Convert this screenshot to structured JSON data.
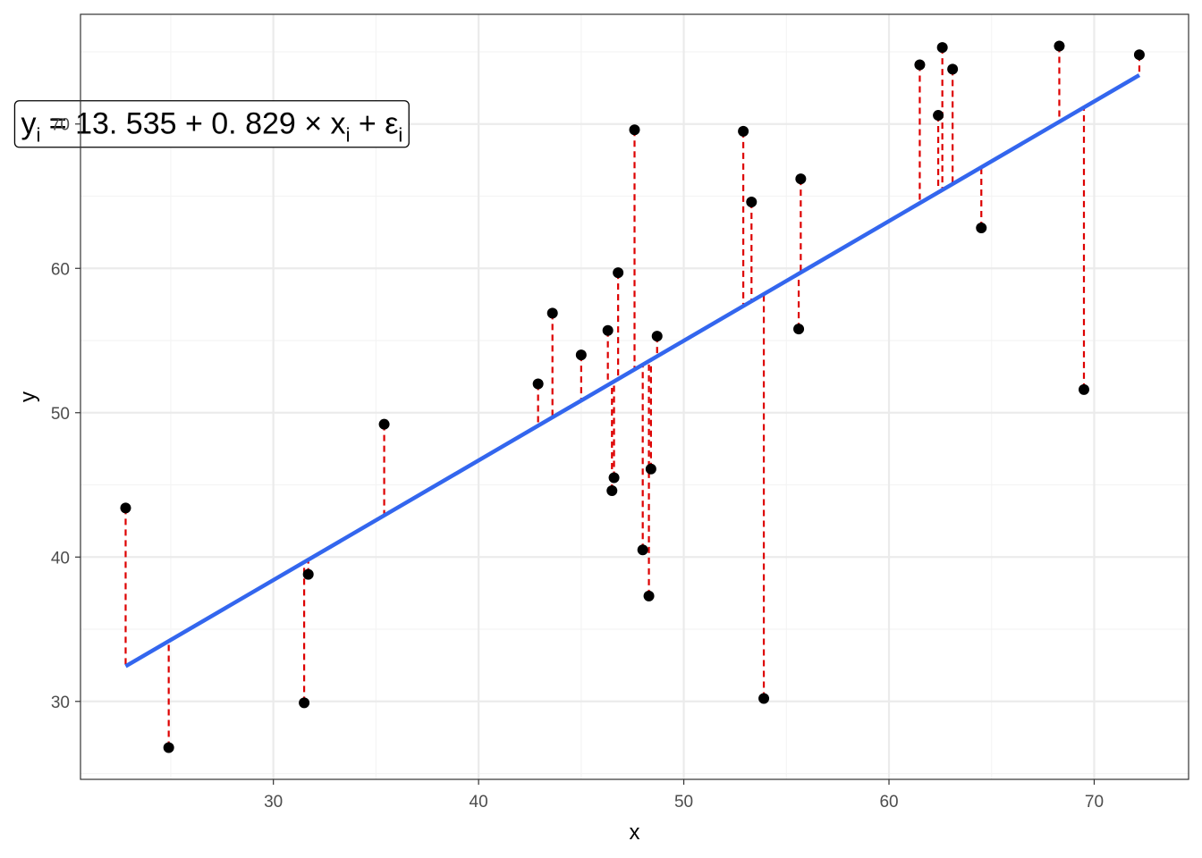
{
  "chart_data": {
    "type": "scatter",
    "xlabel": "x",
    "ylabel": "y",
    "xlim": [
      20.6,
      74.6
    ],
    "ylim": [
      24.6,
      77.6
    ],
    "x_major_ticks": [
      30,
      40,
      50,
      60,
      70
    ],
    "x_minor_ticks": [
      25,
      35,
      45,
      55,
      65
    ],
    "y_major_ticks": [
      30,
      40,
      50,
      60,
      70
    ],
    "y_minor_ticks": [
      25,
      35,
      45,
      55,
      65,
      75
    ],
    "grid": true,
    "regression": {
      "intercept": 13.535,
      "slope": 0.829,
      "x_range": [
        22.8,
        72.2
      ]
    },
    "annotation": {
      "parts": [
        {
          "t": "y",
          "sub": false
        },
        {
          "t": "i",
          "sub": true
        },
        {
          "t": " = 13. 535 + 0. 829 ",
          "sub": false
        },
        {
          "t": "×",
          "sub": false
        },
        {
          "t": " x",
          "sub": false
        },
        {
          "t": "i",
          "sub": true
        },
        {
          "t": " + ε",
          "sub": false
        },
        {
          "t": "i",
          "sub": true
        }
      ],
      "position_data": [
        27.0,
        70.0
      ]
    },
    "points": [
      {
        "x": 22.8,
        "y": 43.4
      },
      {
        "x": 24.9,
        "y": 26.8
      },
      {
        "x": 31.5,
        "y": 29.9
      },
      {
        "x": 31.7,
        "y": 38.8
      },
      {
        "x": 35.4,
        "y": 49.2
      },
      {
        "x": 42.9,
        "y": 52.0
      },
      {
        "x": 43.6,
        "y": 56.9
      },
      {
        "x": 45.0,
        "y": 54.0
      },
      {
        "x": 46.3,
        "y": 55.7
      },
      {
        "x": 46.5,
        "y": 44.6
      },
      {
        "x": 46.6,
        "y": 45.5
      },
      {
        "x": 46.8,
        "y": 59.7
      },
      {
        "x": 47.6,
        "y": 69.6
      },
      {
        "x": 48.0,
        "y": 40.5
      },
      {
        "x": 48.3,
        "y": 37.3
      },
      {
        "x": 48.4,
        "y": 46.1
      },
      {
        "x": 48.7,
        "y": 55.3
      },
      {
        "x": 52.9,
        "y": 69.5
      },
      {
        "x": 53.3,
        "y": 64.6
      },
      {
        "x": 53.9,
        "y": 30.2
      },
      {
        "x": 55.6,
        "y": 55.8
      },
      {
        "x": 55.7,
        "y": 66.2
      },
      {
        "x": 61.5,
        "y": 74.1
      },
      {
        "x": 62.4,
        "y": 70.6
      },
      {
        "x": 62.6,
        "y": 75.3
      },
      {
        "x": 63.1,
        "y": 73.8
      },
      {
        "x": 64.5,
        "y": 62.8
      },
      {
        "x": 68.3,
        "y": 75.4
      },
      {
        "x": 69.5,
        "y": 51.6
      },
      {
        "x": 72.2,
        "y": 74.8
      }
    ],
    "colors": {
      "points": "#000000",
      "regression_line": "#3366ee",
      "residuals": "#dd0000",
      "grid_major": "#ebebeb",
      "grid_minor": "#f4f4f4",
      "panel_border": "#333333",
      "tick_labels": "#4d4d4d"
    }
  }
}
